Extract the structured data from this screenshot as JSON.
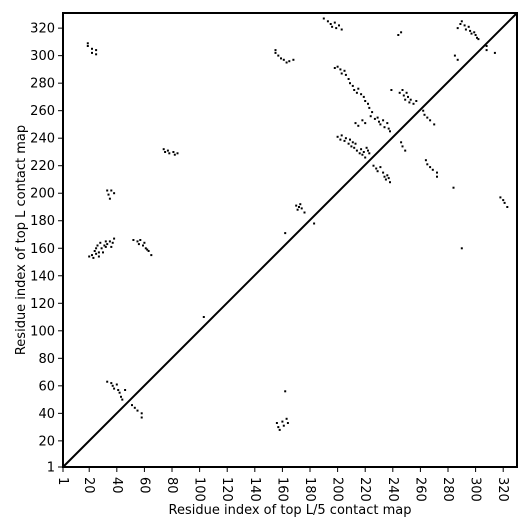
{
  "chart_data": {
    "type": "scatter",
    "title": "",
    "xlabel": "Residue index of top L/5 contact map",
    "ylabel": "Residue index of top L contact map",
    "xlim": [
      1,
      330
    ],
    "ylim": [
      1,
      331
    ],
    "xticks": [
      1,
      20,
      40,
      60,
      80,
      100,
      120,
      140,
      160,
      180,
      200,
      220,
      240,
      260,
      280,
      300,
      320
    ],
    "yticks": [
      1,
      20,
      40,
      60,
      80,
      100,
      120,
      140,
      160,
      180,
      200,
      220,
      240,
      260,
      280,
      300,
      320
    ],
    "grid": false,
    "legend": "none",
    "diagonal": [
      [
        1,
        1
      ],
      [
        330,
        331
      ]
    ],
    "marker_color": "#000000",
    "series": [
      {
        "points": [
          [
            19,
            309
          ],
          [
            19,
            307
          ],
          [
            22,
            305
          ],
          [
            22,
            302
          ],
          [
            25,
            304
          ],
          [
            25,
            301
          ],
          [
            20,
            154
          ],
          [
            22,
            155
          ],
          [
            23,
            153
          ],
          [
            24,
            158
          ],
          [
            25,
            156
          ],
          [
            25,
            160
          ],
          [
            26,
            162
          ],
          [
            27,
            157
          ],
          [
            27,
            154
          ],
          [
            28,
            164
          ],
          [
            29,
            160
          ],
          [
            30,
            157
          ],
          [
            31,
            162
          ],
          [
            32,
            165
          ],
          [
            32,
            161
          ],
          [
            33,
            163
          ],
          [
            35,
            165
          ],
          [
            36,
            161
          ],
          [
            37,
            164
          ],
          [
            38,
            167
          ],
          [
            33,
            202
          ],
          [
            34,
            199
          ],
          [
            35,
            196
          ],
          [
            36,
            202
          ],
          [
            38,
            200
          ],
          [
            33,
            63
          ],
          [
            36,
            62
          ],
          [
            37,
            60
          ],
          [
            38,
            58
          ],
          [
            40,
            61
          ],
          [
            41,
            57
          ],
          [
            42,
            55
          ],
          [
            43,
            52
          ],
          [
            44,
            50
          ],
          [
            46,
            57
          ],
          [
            52,
            166
          ],
          [
            55,
            165
          ],
          [
            56,
            163
          ],
          [
            57,
            166
          ],
          [
            59,
            162
          ],
          [
            60,
            164
          ],
          [
            61,
            160
          ],
          [
            62,
            159
          ],
          [
            63,
            158
          ],
          [
            65,
            155
          ],
          [
            51,
            46
          ],
          [
            53,
            44
          ],
          [
            55,
            42
          ],
          [
            58,
            40
          ],
          [
            58,
            37
          ],
          [
            74,
            232
          ],
          [
            75,
            230
          ],
          [
            77,
            231
          ],
          [
            78,
            229
          ],
          [
            81,
            230
          ],
          [
            82,
            228
          ],
          [
            84,
            229
          ],
          [
            103,
            110
          ],
          [
            155,
            304
          ],
          [
            155,
            302
          ],
          [
            157,
            300
          ],
          [
            159,
            298
          ],
          [
            161,
            297
          ],
          [
            163,
            295
          ],
          [
            165,
            296
          ],
          [
            168,
            297
          ],
          [
            156,
            33
          ],
          [
            157,
            30
          ],
          [
            158,
            28
          ],
          [
            160,
            34
          ],
          [
            161,
            31
          ],
          [
            162,
            56
          ],
          [
            163,
            36
          ],
          [
            164,
            33
          ],
          [
            162,
            171
          ],
          [
            170,
            191
          ],
          [
            171,
            188
          ],
          [
            172,
            190
          ],
          [
            173,
            192
          ],
          [
            174,
            189
          ],
          [
            176,
            186
          ],
          [
            183,
            178
          ],
          [
            190,
            327
          ],
          [
            193,
            325
          ],
          [
            195,
            323
          ],
          [
            196,
            321
          ],
          [
            198,
            324
          ],
          [
            199,
            320
          ],
          [
            201,
            322
          ],
          [
            203,
            319
          ],
          [
            198,
            291
          ],
          [
            200,
            292
          ],
          [
            202,
            290
          ],
          [
            203,
            287
          ],
          [
            205,
            289
          ],
          [
            206,
            286
          ],
          [
            208,
            283
          ],
          [
            209,
            280
          ],
          [
            211,
            278
          ],
          [
            212,
            275
          ],
          [
            214,
            273
          ],
          [
            215,
            276
          ],
          [
            217,
            272
          ],
          [
            219,
            270
          ],
          [
            220,
            267
          ],
          [
            222,
            265
          ],
          [
            223,
            262
          ],
          [
            225,
            259
          ],
          [
            224,
            256
          ],
          [
            227,
            254
          ],
          [
            200,
            241
          ],
          [
            202,
            239
          ],
          [
            203,
            242
          ],
          [
            205,
            238
          ],
          [
            206,
            240
          ],
          [
            208,
            236
          ],
          [
            209,
            239
          ],
          [
            210,
            234
          ],
          [
            211,
            237
          ],
          [
            212,
            233
          ],
          [
            213,
            236
          ],
          [
            214,
            231
          ],
          [
            216,
            229
          ],
          [
            217,
            232
          ],
          [
            218,
            228
          ],
          [
            219,
            230
          ],
          [
            220,
            226
          ],
          [
            221,
            233
          ],
          [
            222,
            231
          ],
          [
            223,
            229
          ],
          [
            213,
            251
          ],
          [
            215,
            249
          ],
          [
            218,
            253
          ],
          [
            220,
            251
          ],
          [
            226,
            220
          ],
          [
            228,
            218
          ],
          [
            229,
            216
          ],
          [
            231,
            219
          ],
          [
            233,
            215
          ],
          [
            234,
            212
          ],
          [
            235,
            210
          ],
          [
            236,
            213
          ],
          [
            237,
            211
          ],
          [
            238,
            208
          ],
          [
            229,
            255
          ],
          [
            230,
            252
          ],
          [
            231,
            250
          ],
          [
            233,
            253
          ],
          [
            234,
            248
          ],
          [
            236,
            251
          ],
          [
            237,
            247
          ],
          [
            238,
            245
          ],
          [
            239,
            275
          ],
          [
            244,
            315
          ],
          [
            246,
            317
          ],
          [
            245,
            273
          ],
          [
            247,
            275
          ],
          [
            248,
            271
          ],
          [
            249,
            268
          ],
          [
            250,
            273
          ],
          [
            251,
            270
          ],
          [
            252,
            266
          ],
          [
            253,
            268
          ],
          [
            255,
            265
          ],
          [
            257,
            267
          ],
          [
            246,
            237
          ],
          [
            247,
            234
          ],
          [
            249,
            231
          ],
          [
            262,
            260
          ],
          [
            263,
            257
          ],
          [
            265,
            255
          ],
          [
            267,
            253
          ],
          [
            270,
            250
          ],
          [
            264,
            224
          ],
          [
            265,
            221
          ],
          [
            267,
            219
          ],
          [
            269,
            217
          ],
          [
            272,
            215
          ],
          [
            272,
            212
          ],
          [
            284,
            204
          ],
          [
            285,
            300
          ],
          [
            287,
            297
          ],
          [
            290,
            160
          ],
          [
            287,
            320
          ],
          [
            289,
            323
          ],
          [
            290,
            325
          ],
          [
            292,
            322
          ],
          [
            293,
            319
          ],
          [
            295,
            321
          ],
          [
            296,
            318
          ],
          [
            297,
            316
          ],
          [
            299,
            317
          ],
          [
            300,
            315
          ],
          [
            301,
            313
          ],
          [
            302,
            312
          ],
          [
            308,
            307
          ],
          [
            308,
            304
          ],
          [
            314,
            302
          ],
          [
            318,
            197
          ],
          [
            320,
            195
          ],
          [
            321,
            193
          ],
          [
            323,
            190
          ]
        ]
      }
    ]
  }
}
